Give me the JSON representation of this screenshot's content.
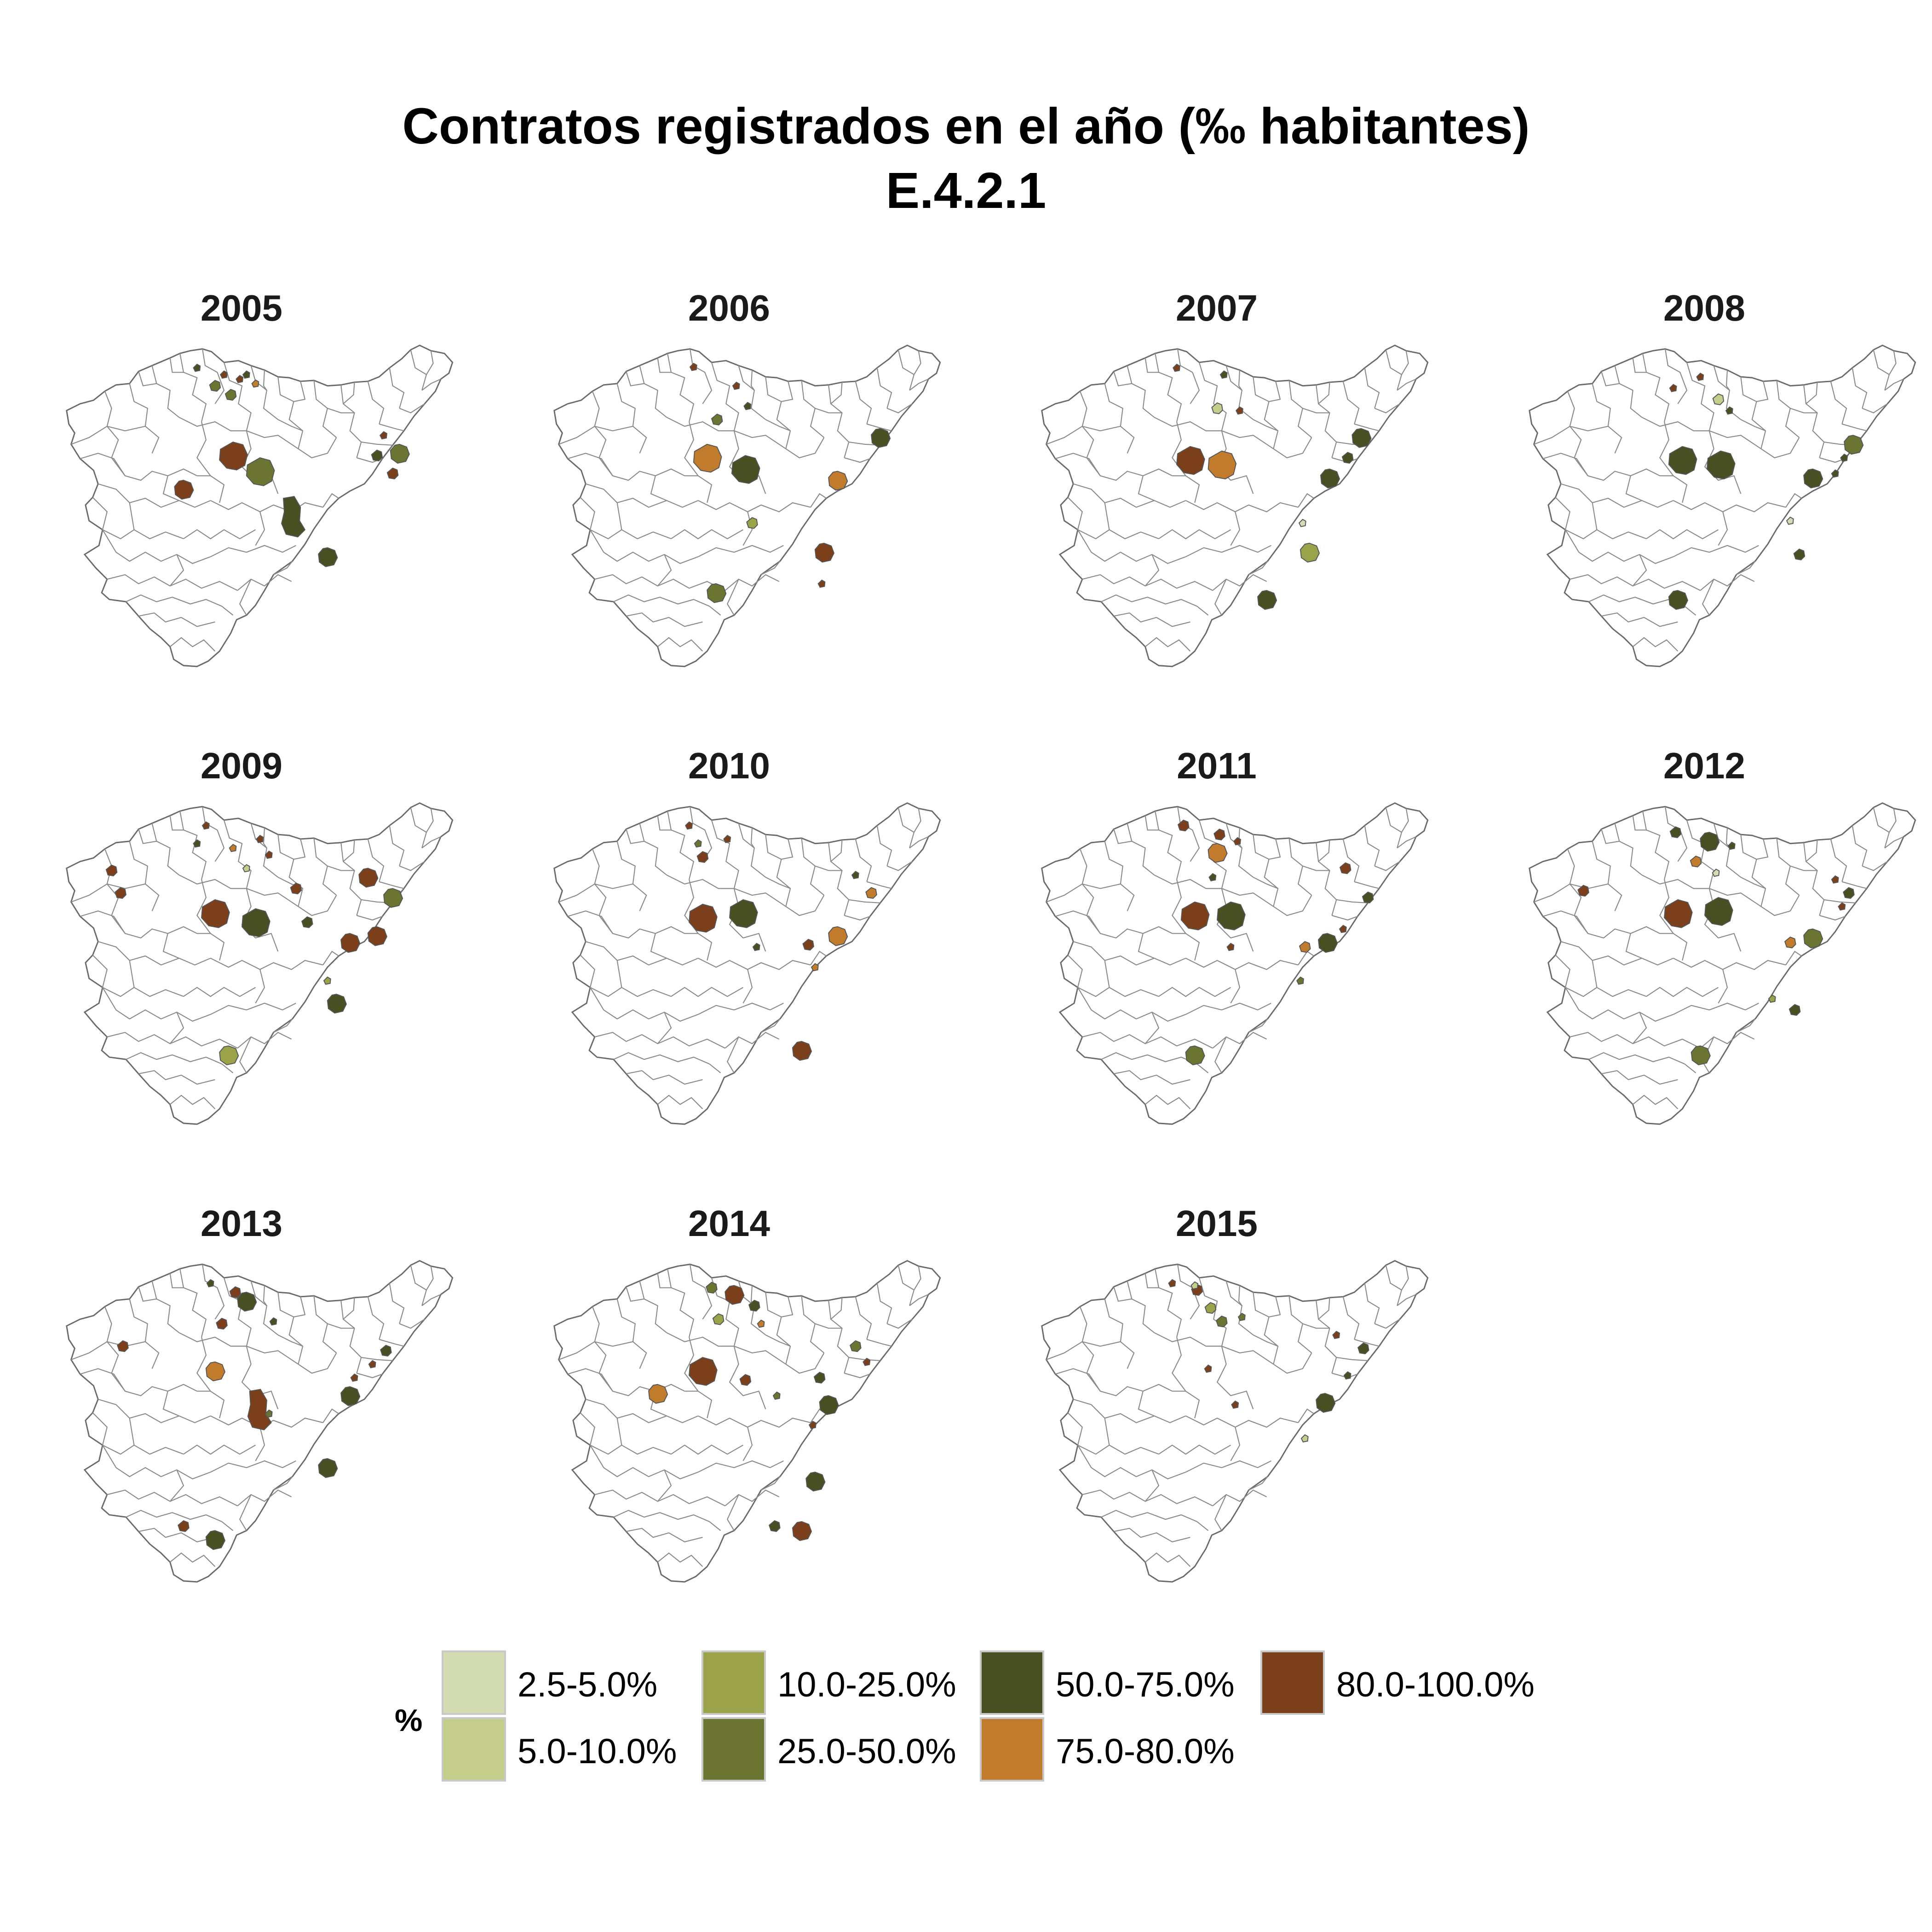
{
  "title": {
    "line1": "Contratos registrados en el año (‰ habitantes)",
    "line2": "E.4.2.1"
  },
  "legend": {
    "title": "%",
    "items": [
      {
        "label": "2.5-5.0%",
        "color": "#d4dcb4"
      },
      {
        "label": "5.0-10.0%",
        "color": "#c5cd8c"
      },
      {
        "label": "10.0-25.0%",
        "color": "#9aa24a"
      },
      {
        "label": "25.0-50.0%",
        "color": "#6c7432"
      },
      {
        "label": "50.0-75.0%",
        "color": "#484f22"
      },
      {
        "label": "75.0-80.0%",
        "color": "#c07c2c"
      },
      {
        "label": "80.0-100.0%",
        "color": "#7c3f1c"
      }
    ]
  },
  "panels": [
    {
      "year": "2005"
    },
    {
      "year": "2006"
    },
    {
      "year": "2007"
    },
    {
      "year": "2008"
    },
    {
      "year": "2009"
    },
    {
      "year": "2010"
    },
    {
      "year": "2011"
    },
    {
      "year": "2012"
    },
    {
      "year": "2013"
    },
    {
      "year": "2014"
    },
    {
      "year": "2015"
    }
  ]
}
